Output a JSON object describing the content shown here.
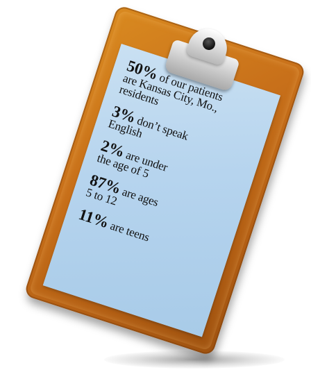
{
  "stats": [
    {
      "pct": "50%",
      "text_1": " of our patients",
      "text_2": "are Kansas City, Mo.,",
      "text_3": "residents"
    },
    {
      "pct": "3%",
      "text_1": " don’t speak",
      "text_2": "English",
      "text_3": ""
    },
    {
      "pct": "2%",
      "text_1": " are under",
      "text_2": "the age of 5",
      "text_3": ""
    },
    {
      "pct": "87%",
      "text_1": " are ages",
      "text_2": "5 to 12",
      "text_3": ""
    },
    {
      "pct": "11%",
      "text_1": " are teens",
      "text_2": "",
      "text_3": ""
    }
  ],
  "colors": {
    "board": "#c8701a",
    "paper": "#b6d4ee",
    "clip": "#cfcfcf"
  },
  "icons": [
    "clipboard-clip-icon"
  ]
}
